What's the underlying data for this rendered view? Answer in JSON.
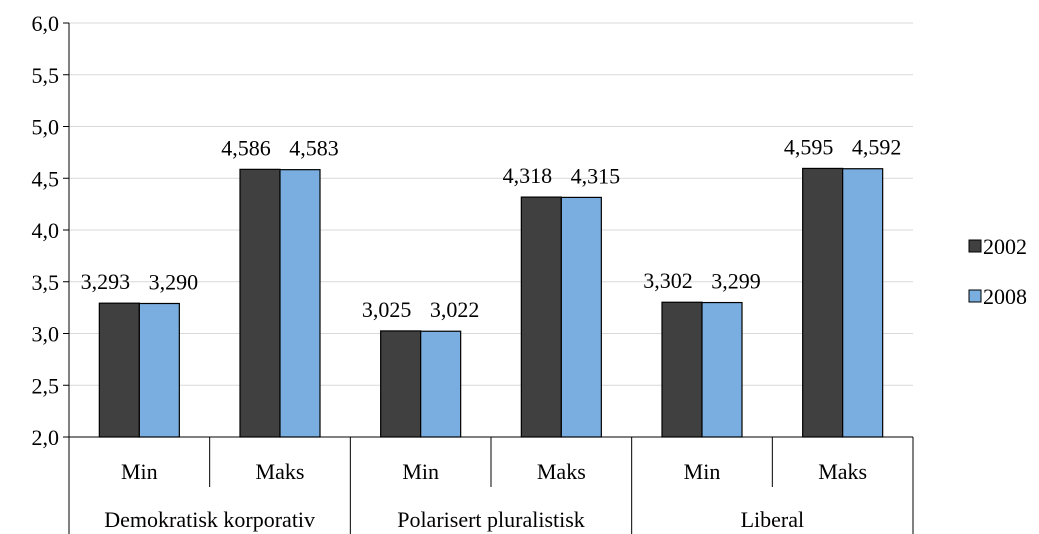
{
  "chart_data": {
    "type": "bar",
    "title": "",
    "xlabel": "",
    "ylabel": "",
    "ylim": [
      2.0,
      6.0
    ],
    "y_ticks": [
      "2,0",
      "2,5",
      "3,0",
      "3,5",
      "4,0",
      "4,5",
      "5,0",
      "5,5",
      "6,0"
    ],
    "grid": true,
    "legend_position": "right",
    "groups": [
      {
        "label": "Demokratisk korporativ",
        "categories": [
          "Min",
          "Maks"
        ]
      },
      {
        "label": "Polarisert pluralistisk",
        "categories": [
          "Min",
          "Maks"
        ]
      },
      {
        "label": "Liberal",
        "categories": [
          "Min",
          "Maks"
        ]
      }
    ],
    "categories": [
      "Min",
      "Maks",
      "Min",
      "Maks",
      "Min",
      "Maks"
    ],
    "series": [
      {
        "name": "2002",
        "color": "#404040",
        "values": [
          3.293,
          4.586,
          3.025,
          4.318,
          3.302,
          4.595
        ],
        "labels": [
          "3,293",
          "4,586",
          "3,025",
          "4,318",
          "3,302",
          "4,595"
        ]
      },
      {
        "name": "2008",
        "color": "#7aaee0",
        "values": [
          3.29,
          4.583,
          3.022,
          4.315,
          3.299,
          4.592
        ],
        "labels": [
          "3,290",
          "4,583",
          "3,022",
          "4,315",
          "3,299",
          "4,592"
        ]
      }
    ]
  }
}
